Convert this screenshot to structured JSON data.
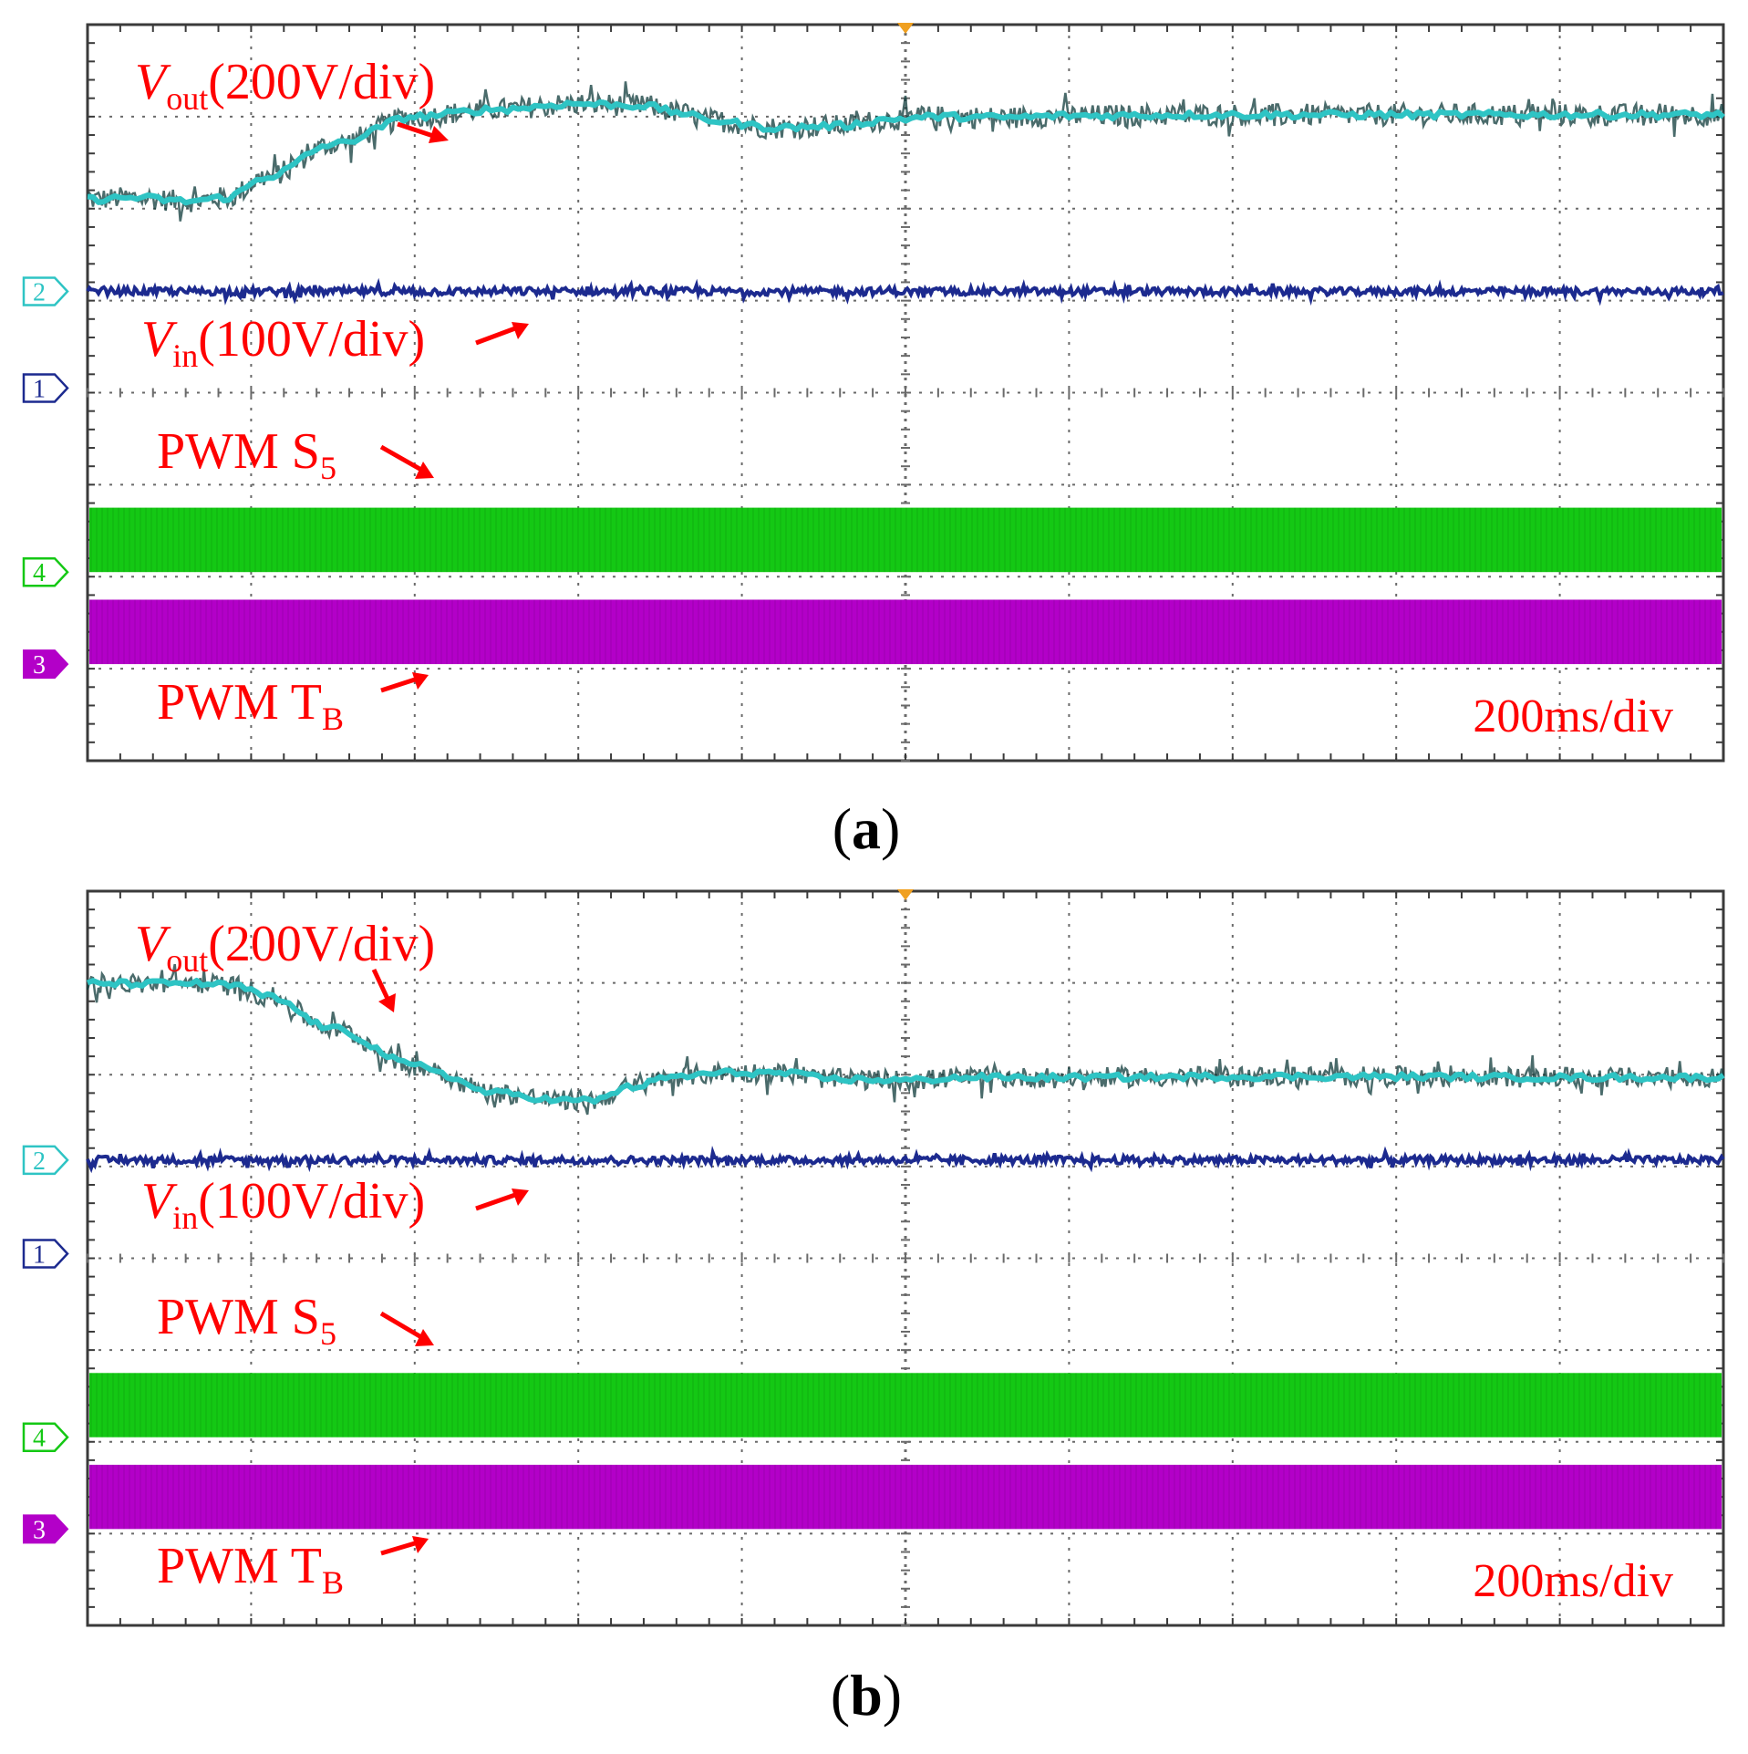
{
  "colors": {
    "background": "#ffffff",
    "frame": "#3a3a3a",
    "grid": "#6a6a6a",
    "ch1": "#1c2a8f",
    "ch2": "#2ec4c4",
    "ch2_noise": "#0d3a3a",
    "ch3": "#b300c8",
    "ch4": "#14c814",
    "annotation": "#ff0000",
    "trigger": "#f0a020"
  },
  "chart_data": [
    {
      "type": "line",
      "panel": "a",
      "caption": "a",
      "timebase_label": "200ms/div",
      "grid": {
        "x_divisions": 10,
        "y_divisions": 8,
        "minor_ticks_per_div": 5
      },
      "x_unit": "div",
      "y_unit": "div",
      "xlim": [
        0,
        10
      ],
      "ylim": [
        0,
        8
      ],
      "markers": [
        {
          "name": "2",
          "level": 5.1,
          "style": "outline"
        },
        {
          "name": "1",
          "level": 4.05,
          "style": "outline"
        },
        {
          "name": "4",
          "level": 2.05,
          "style": "outline"
        },
        {
          "name": "3",
          "level": 1.05,
          "style": "filled"
        }
      ],
      "series": [
        {
          "name": "Vout",
          "channel": "2",
          "kind": "analog",
          "label": {
            "main": "V",
            "sub": "out",
            "rest": "(200V/div)"
          },
          "x": [
            0,
            0.3,
            0.6,
            0.85,
            1.1,
            1.5,
            2.0,
            2.5,
            3.0,
            3.4,
            3.6,
            3.8,
            4.2,
            4.6,
            4.9,
            5.2,
            5.6,
            6.0,
            7.0,
            8.0,
            9.0,
            10.0
          ],
          "y": [
            6.1,
            6.12,
            6.08,
            6.12,
            6.35,
            6.7,
            7.0,
            7.08,
            7.14,
            7.12,
            7.05,
            6.96,
            6.88,
            6.9,
            6.97,
            7.0,
            6.99,
            7.01,
            7.02,
            7.02,
            7.02,
            7.02
          ],
          "noise_amplitude": 0.12
        },
        {
          "name": "Vin",
          "channel": "1",
          "kind": "analog",
          "label": {
            "main": "V",
            "sub": "in",
            "rest": "(100V/div)"
          },
          "x": [
            0,
            10
          ],
          "y": [
            5.1,
            5.1
          ],
          "noise_amplitude": 0.04
        },
        {
          "name": "PWM S5",
          "channel": "4",
          "kind": "pwm_band",
          "label": {
            "main": "PWM S",
            "sub": "5",
            "rest": ""
          },
          "band": [
            2.05,
            2.75
          ]
        },
        {
          "name": "PWM TB",
          "channel": "3",
          "kind": "pwm_band",
          "label": {
            "main": "PWM T",
            "sub": "B",
            "rest": ""
          },
          "band": [
            1.05,
            1.75
          ]
        }
      ]
    },
    {
      "type": "line",
      "panel": "b",
      "caption": "b",
      "timebase_label": "200ms/div",
      "grid": {
        "x_divisions": 10,
        "y_divisions": 8,
        "minor_ticks_per_div": 5
      },
      "x_unit": "div",
      "y_unit": "div",
      "xlim": [
        0,
        10
      ],
      "ylim": [
        0,
        8
      ],
      "markers": [
        {
          "name": "2",
          "level": 5.07,
          "style": "outline"
        },
        {
          "name": "1",
          "level": 4.05,
          "style": "outline"
        },
        {
          "name": "4",
          "level": 2.05,
          "style": "outline"
        },
        {
          "name": "3",
          "level": 1.05,
          "style": "filled"
        }
      ],
      "series": [
        {
          "name": "Vout",
          "channel": "2",
          "kind": "analog",
          "label": {
            "main": "V",
            "sub": "out",
            "rest": "(200V/div)"
          },
          "x": [
            0,
            0.3,
            0.6,
            0.9,
            1.1,
            1.5,
            2.0,
            2.5,
            2.9,
            3.1,
            3.3,
            3.6,
            3.9,
            4.2,
            4.6,
            5.0,
            5.4,
            6.0,
            7.0,
            8.0,
            9.0,
            10.0
          ],
          "y": [
            7.0,
            6.99,
            7.0,
            6.97,
            6.85,
            6.5,
            6.1,
            5.8,
            5.72,
            5.72,
            5.86,
            5.98,
            6.02,
            6.02,
            5.95,
            5.94,
            5.97,
            5.97,
            5.98,
            5.98,
            5.97,
            5.97
          ],
          "noise_amplitude": 0.11
        },
        {
          "name": "Vin",
          "channel": "1",
          "kind": "analog",
          "label": {
            "main": "V",
            "sub": "in",
            "rest": "(100V/div)"
          },
          "x": [
            0,
            10
          ],
          "y": [
            5.07,
            5.07
          ],
          "noise_amplitude": 0.04
        },
        {
          "name": "PWM S5",
          "channel": "4",
          "kind": "pwm_band",
          "label": {
            "main": "PWM S",
            "sub": "5",
            "rest": ""
          },
          "band": [
            2.05,
            2.75
          ]
        },
        {
          "name": "PWM TB",
          "channel": "3",
          "kind": "pwm_band",
          "label": {
            "main": "PWM T",
            "sub": "B",
            "rest": ""
          },
          "band": [
            1.05,
            1.75
          ]
        }
      ]
    }
  ]
}
